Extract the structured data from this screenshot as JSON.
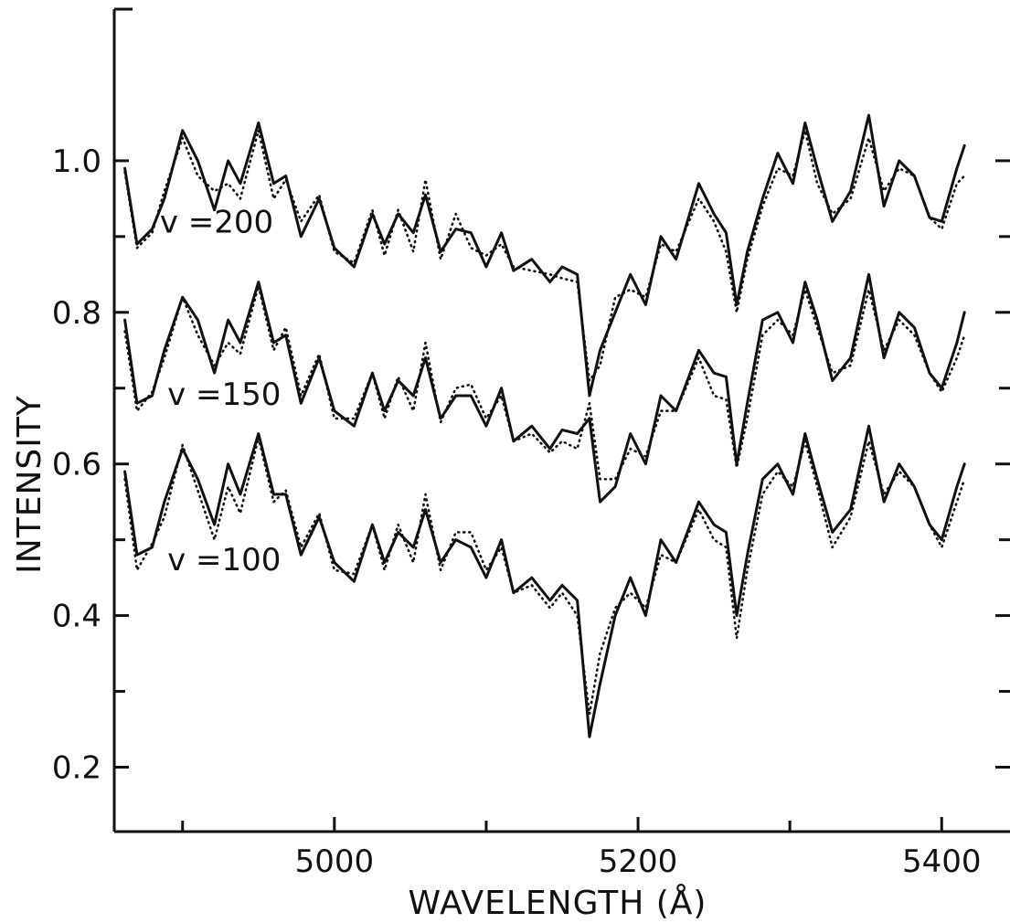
{
  "chart_data": {
    "type": "line",
    "xlabel": "WAVELENGTH (Å)",
    "ylabel": "INTENSITY",
    "xlim": [
      4855,
      5445
    ],
    "ylim": [
      0.115,
      1.2
    ],
    "grid": false,
    "x_ticks": [
      5000,
      5200,
      5400
    ],
    "x_minor_ticks": [
      4900,
      5100,
      5300
    ],
    "y_ticks": [
      0.2,
      0.4,
      0.6,
      0.8,
      1.0
    ],
    "y_tick_labels": [
      "0.2",
      "0.4",
      "0.6",
      "0.8",
      "1.0"
    ],
    "y_minor_ticks": [
      0.3,
      0.5,
      0.7,
      0.9
    ],
    "groups": [
      {
        "label": "v =200",
        "label_pos": [
          4885,
          0.905
        ],
        "series": [
          {
            "style": "solid",
            "x": [
              4862,
              4870,
              4880,
              4888,
              4900,
              4910,
              4921,
              4930,
              4938,
              4950,
              4960,
              4968,
              4978,
              4990,
              5000,
              5013,
              5025,
              5033,
              5042,
              5052,
              5060,
              5070,
              5080,
              5090,
              5100,
              5110,
              5118,
              5130,
              5142,
              5150,
              5160,
              5168,
              5175,
              5185,
              5195,
              5205,
              5215,
              5225,
              5240,
              5250,
              5258,
              5265,
              5272,
              5282,
              5292,
              5302,
              5310,
              5318,
              5328,
              5340,
              5352,
              5362,
              5372,
              5382,
              5392,
              5400,
              5410,
              5415
            ],
            "y": [
              0.99,
              0.89,
              0.91,
              0.95,
              1.04,
              1.0,
              0.935,
              1.0,
              0.97,
              1.05,
              0.97,
              0.98,
              0.9,
              0.95,
              0.885,
              0.86,
              0.93,
              0.89,
              0.93,
              0.905,
              0.955,
              0.88,
              0.91,
              0.905,
              0.86,
              0.905,
              0.855,
              0.87,
              0.84,
              0.86,
              0.85,
              0.69,
              0.75,
              0.8,
              0.85,
              0.81,
              0.9,
              0.87,
              0.97,
              0.93,
              0.905,
              0.81,
              0.88,
              0.95,
              1.01,
              0.97,
              1.05,
              0.99,
              0.92,
              0.96,
              1.06,
              0.94,
              1.0,
              0.98,
              0.925,
              0.92,
              0.99,
              1.02
            ]
          },
          {
            "style": "dotted",
            "x": [
              4862,
              4870,
              4880,
              4888,
              4900,
              4910,
              4921,
              4930,
              4938,
              4950,
              4960,
              4968,
              4978,
              4990,
              5000,
              5013,
              5025,
              5033,
              5042,
              5052,
              5060,
              5070,
              5080,
              5090,
              5100,
              5110,
              5118,
              5130,
              5142,
              5150,
              5160,
              5168,
              5175,
              5185,
              5195,
              5205,
              5215,
              5225,
              5240,
              5250,
              5258,
              5265,
              5272,
              5282,
              5292,
              5302,
              5310,
              5318,
              5328,
              5340,
              5352,
              5362,
              5372,
              5382,
              5392,
              5400,
              5410,
              5415
            ],
            "y": [
              0.985,
              0.885,
              0.905,
              0.96,
              1.03,
              0.98,
              0.96,
              0.97,
              0.95,
              1.04,
              0.95,
              0.975,
              0.92,
              0.955,
              0.88,
              0.865,
              0.935,
              0.875,
              0.935,
              0.88,
              0.975,
              0.87,
              0.93,
              0.885,
              0.875,
              0.89,
              0.86,
              0.855,
              0.85,
              0.845,
              0.84,
              0.71,
              0.73,
              0.82,
              0.83,
              0.82,
              0.89,
              0.88,
              0.95,
              0.92,
              0.88,
              0.8,
              0.87,
              0.94,
              0.99,
              0.98,
              1.04,
              0.97,
              0.93,
              0.95,
              1.03,
              0.96,
              0.99,
              0.98,
              0.925,
              0.91,
              0.97,
              0.98
            ]
          }
        ]
      },
      {
        "label": "v =150",
        "label_pos": [
          4890,
          0.678
        ],
        "series": [
          {
            "style": "solid",
            "x": [
              4862,
              4870,
              4880,
              4888,
              4900,
              4910,
              4921,
              4930,
              4938,
              4950,
              4960,
              4968,
              4978,
              4990,
              5000,
              5013,
              5025,
              5033,
              5042,
              5052,
              5060,
              5070,
              5080,
              5090,
              5100,
              5110,
              5118,
              5130,
              5142,
              5150,
              5160,
              5168,
              5175,
              5185,
              5195,
              5205,
              5215,
              5225,
              5240,
              5250,
              5258,
              5265,
              5272,
              5282,
              5292,
              5302,
              5310,
              5318,
              5328,
              5340,
              5352,
              5362,
              5372,
              5382,
              5392,
              5400,
              5410,
              5415
            ],
            "y": [
              0.79,
              0.68,
              0.69,
              0.75,
              0.82,
              0.79,
              0.72,
              0.79,
              0.76,
              0.84,
              0.76,
              0.77,
              0.68,
              0.74,
              0.67,
              0.65,
              0.72,
              0.67,
              0.71,
              0.69,
              0.74,
              0.66,
              0.69,
              0.69,
              0.65,
              0.7,
              0.63,
              0.65,
              0.62,
              0.645,
              0.64,
              0.66,
              0.55,
              0.57,
              0.64,
              0.6,
              0.69,
              0.67,
              0.75,
              0.72,
              0.715,
              0.6,
              0.68,
              0.79,
              0.8,
              0.76,
              0.84,
              0.79,
              0.71,
              0.74,
              0.85,
              0.74,
              0.8,
              0.78,
              0.72,
              0.7,
              0.76,
              0.8
            ]
          },
          {
            "style": "dotted",
            "x": [
              4862,
              4870,
              4880,
              4888,
              4900,
              4910,
              4921,
              4930,
              4938,
              4950,
              4960,
              4968,
              4978,
              4990,
              5000,
              5013,
              5025,
              5033,
              5042,
              5052,
              5060,
              5070,
              5080,
              5090,
              5100,
              5110,
              5118,
              5130,
              5142,
              5150,
              5160,
              5168,
              5175,
              5185,
              5195,
              5205,
              5215,
              5225,
              5240,
              5250,
              5258,
              5265,
              5272,
              5282,
              5292,
              5302,
              5310,
              5318,
              5328,
              5340,
              5352,
              5362,
              5372,
              5382,
              5392,
              5400,
              5410,
              5415
            ],
            "y": [
              0.775,
              0.67,
              0.695,
              0.74,
              0.82,
              0.77,
              0.73,
              0.76,
              0.745,
              0.835,
              0.75,
              0.78,
              0.69,
              0.745,
              0.66,
              0.66,
              0.72,
              0.66,
              0.715,
              0.67,
              0.76,
              0.655,
              0.7,
              0.705,
              0.66,
              0.69,
              0.63,
              0.64,
              0.615,
              0.63,
              0.62,
              0.68,
              0.58,
              0.58,
              0.62,
              0.61,
              0.67,
              0.67,
              0.74,
              0.69,
              0.685,
              0.595,
              0.66,
              0.77,
              0.79,
              0.77,
              0.83,
              0.78,
              0.72,
              0.73,
              0.83,
              0.75,
              0.79,
              0.77,
              0.72,
              0.695,
              0.74,
              0.77
            ]
          }
        ]
      },
      {
        "label": "v =100",
        "label_pos": [
          4890,
          0.46
        ],
        "series": [
          {
            "style": "solid",
            "x": [
              4862,
              4870,
              4880,
              4888,
              4900,
              4910,
              4921,
              4930,
              4938,
              4950,
              4960,
              4968,
              4978,
              4990,
              5000,
              5013,
              5025,
              5033,
              5042,
              5052,
              5060,
              5070,
              5080,
              5090,
              5100,
              5110,
              5118,
              5130,
              5142,
              5150,
              5160,
              5168,
              5175,
              5185,
              5195,
              5205,
              5215,
              5225,
              5240,
              5250,
              5258,
              5265,
              5272,
              5282,
              5292,
              5302,
              5310,
              5318,
              5328,
              5340,
              5352,
              5362,
              5372,
              5382,
              5392,
              5400,
              5410,
              5415
            ],
            "y": [
              0.59,
              0.48,
              0.49,
              0.55,
              0.62,
              0.58,
              0.52,
              0.6,
              0.56,
              0.64,
              0.56,
              0.56,
              0.48,
              0.53,
              0.47,
              0.445,
              0.52,
              0.47,
              0.51,
              0.49,
              0.54,
              0.47,
              0.5,
              0.49,
              0.45,
              0.5,
              0.43,
              0.45,
              0.42,
              0.44,
              0.42,
              0.24,
              0.31,
              0.4,
              0.45,
              0.4,
              0.5,
              0.47,
              0.55,
              0.52,
              0.51,
              0.4,
              0.48,
              0.58,
              0.6,
              0.56,
              0.64,
              0.58,
              0.51,
              0.54,
              0.65,
              0.55,
              0.6,
              0.57,
              0.52,
              0.5,
              0.57,
              0.6
            ]
          },
          {
            "style": "dotted",
            "x": [
              4862,
              4870,
              4880,
              4888,
              4900,
              4910,
              4921,
              4930,
              4938,
              4950,
              4960,
              4968,
              4978,
              4990,
              5000,
              5013,
              5025,
              5033,
              5042,
              5052,
              5060,
              5070,
              5080,
              5090,
              5100,
              5110,
              5118,
              5130,
              5142,
              5150,
              5160,
              5168,
              5175,
              5185,
              5195,
              5205,
              5215,
              5225,
              5240,
              5250,
              5258,
              5265,
              5272,
              5282,
              5292,
              5302,
              5310,
              5318,
              5328,
              5340,
              5352,
              5362,
              5372,
              5382,
              5392,
              5400,
              5410,
              5415
            ],
            "y": [
              0.58,
              0.46,
              0.495,
              0.53,
              0.625,
              0.565,
              0.5,
              0.57,
              0.535,
              0.635,
              0.55,
              0.565,
              0.49,
              0.535,
              0.46,
              0.455,
              0.52,
              0.46,
              0.52,
              0.47,
              0.56,
              0.46,
              0.51,
              0.51,
              0.46,
              0.49,
              0.43,
              0.44,
              0.41,
              0.43,
              0.4,
              0.27,
              0.35,
              0.41,
              0.43,
              0.41,
              0.48,
              0.47,
              0.54,
              0.5,
              0.49,
              0.37,
              0.46,
              0.56,
              0.59,
              0.57,
              0.63,
              0.57,
              0.49,
              0.53,
              0.63,
              0.56,
              0.59,
              0.57,
              0.52,
              0.49,
              0.55,
              0.58
            ]
          }
        ]
      }
    ]
  }
}
